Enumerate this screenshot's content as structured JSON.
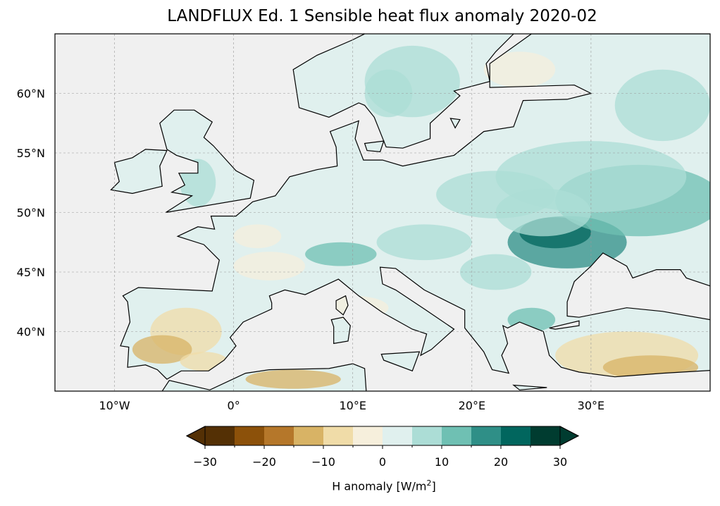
{
  "title": "LANDFLUX Ed. 1 Sensible heat flux anomaly 2020-02",
  "map": {
    "lon_range": [
      -15,
      40
    ],
    "lat_range": [
      35,
      65
    ],
    "ocean_color": "#f0f0f0",
    "land_color": "#e0f0ee",
    "gridlines": true,
    "lon_ticks": [
      -10,
      0,
      10,
      20,
      30
    ],
    "lon_tick_labels": [
      "10°W",
      "0°",
      "10°E",
      "20°E",
      "30°E"
    ],
    "lat_ticks": [
      60,
      55,
      50,
      45,
      40
    ],
    "lat_tick_labels": [
      "60°N",
      "55°N",
      "50°N",
      "45°N",
      "40°N"
    ]
  },
  "colorbar": {
    "label_prefix": "H anomaly [W/m",
    "label_sup": "2",
    "label_suffix": "]",
    "boundaries": [
      -30,
      -25,
      -20,
      -15,
      -10,
      -5,
      0,
      5,
      10,
      15,
      20,
      25,
      30
    ],
    "tick_values": [
      -30,
      -20,
      -10,
      0,
      10,
      20,
      30
    ],
    "tick_labels": [
      "−30",
      "−20",
      "−10",
      "0",
      "10",
      "20",
      "30"
    ],
    "colors": [
      "#543005",
      "#8c510a",
      "#b5772a",
      "#d8b365",
      "#f0dca8",
      "#f6efdc",
      "#e0f0ee",
      "#acddd6",
      "#6fc0b3",
      "#2f8f87",
      "#01665e",
      "#003c30"
    ],
    "extend": "both"
  }
}
